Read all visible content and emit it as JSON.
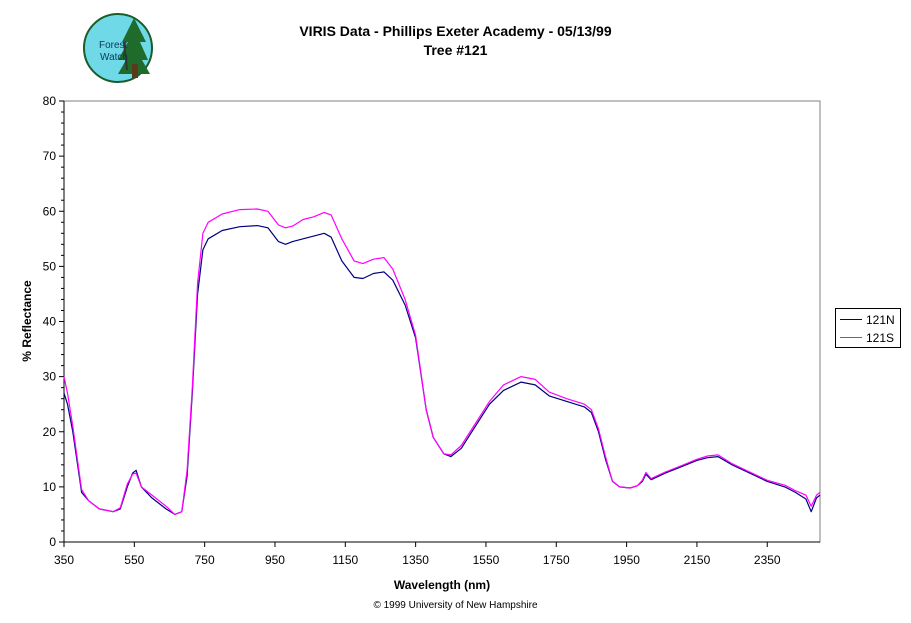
{
  "chart_data": {
    "type": "line",
    "title": "VIRIS Data - Phillips Exeter Academy - 05/13/99",
    "subtitle": "Tree #121",
    "xlabel": "Wavelength (nm)",
    "ylabel": "% Reflectance",
    "xlim": [
      350,
      2500
    ],
    "ylim": [
      0,
      80
    ],
    "xticks": [
      350,
      550,
      750,
      950,
      1150,
      1350,
      1550,
      1750,
      1950,
      2150,
      2350
    ],
    "yticks": [
      0,
      10,
      20,
      30,
      40,
      50,
      60,
      70,
      80
    ],
    "grid": false,
    "legend_position": "right",
    "series": [
      {
        "name": "121N",
        "color": "#000080",
        "points": [
          [
            350,
            27
          ],
          [
            360,
            25
          ],
          [
            375,
            20
          ],
          [
            400,
            9
          ],
          [
            420,
            7.5
          ],
          [
            450,
            6
          ],
          [
            490,
            5.5
          ],
          [
            510,
            6
          ],
          [
            530,
            10
          ],
          [
            545,
            12.5
          ],
          [
            555,
            13
          ],
          [
            570,
            10
          ],
          [
            600,
            8
          ],
          [
            640,
            6
          ],
          [
            665,
            5
          ],
          [
            685,
            5.5
          ],
          [
            700,
            12
          ],
          [
            715,
            27
          ],
          [
            730,
            45
          ],
          [
            745,
            53
          ],
          [
            760,
            55
          ],
          [
            800,
            56.5
          ],
          [
            850,
            57.2
          ],
          [
            900,
            57.4
          ],
          [
            930,
            57
          ],
          [
            960,
            54.5
          ],
          [
            980,
            54
          ],
          [
            1000,
            54.5
          ],
          [
            1030,
            55
          ],
          [
            1060,
            55.5
          ],
          [
            1090,
            56
          ],
          [
            1110,
            55.3
          ],
          [
            1140,
            51
          ],
          [
            1175,
            48
          ],
          [
            1200,
            47.8
          ],
          [
            1230,
            48.7
          ],
          [
            1260,
            49
          ],
          [
            1285,
            47.5
          ],
          [
            1320,
            43
          ],
          [
            1350,
            37
          ],
          [
            1380,
            24
          ],
          [
            1400,
            19
          ],
          [
            1430,
            16
          ],
          [
            1450,
            15.5
          ],
          [
            1480,
            17
          ],
          [
            1520,
            21
          ],
          [
            1560,
            25
          ],
          [
            1600,
            27.5
          ],
          [
            1650,
            29
          ],
          [
            1690,
            28.5
          ],
          [
            1730,
            26.5
          ],
          [
            1780,
            25.5
          ],
          [
            1830,
            24.5
          ],
          [
            1850,
            23.5
          ],
          [
            1870,
            20
          ],
          [
            1890,
            15
          ],
          [
            1910,
            11
          ],
          [
            1930,
            10
          ],
          [
            1960,
            9.8
          ],
          [
            1980,
            10.2
          ],
          [
            1995,
            11
          ],
          [
            2005,
            12.3
          ],
          [
            2020,
            11.3
          ],
          [
            2060,
            12.5
          ],
          [
            2100,
            13.5
          ],
          [
            2150,
            14.8
          ],
          [
            2180,
            15.3
          ],
          [
            2210,
            15.5
          ],
          [
            2250,
            14
          ],
          [
            2300,
            12.5
          ],
          [
            2350,
            11
          ],
          [
            2400,
            10
          ],
          [
            2430,
            9
          ],
          [
            2460,
            7.8
          ],
          [
            2475,
            5.5
          ],
          [
            2490,
            8
          ],
          [
            2500,
            8.5
          ]
        ]
      },
      {
        "name": "121S",
        "color": "#ff00ff",
        "points": [
          [
            350,
            30
          ],
          [
            360,
            27
          ],
          [
            375,
            21
          ],
          [
            400,
            9.5
          ],
          [
            420,
            7.5
          ],
          [
            450,
            6
          ],
          [
            490,
            5.5
          ],
          [
            510,
            6.2
          ],
          [
            530,
            10.5
          ],
          [
            545,
            12.3
          ],
          [
            555,
            12.5
          ],
          [
            570,
            10
          ],
          [
            600,
            8.5
          ],
          [
            640,
            6.5
          ],
          [
            665,
            5
          ],
          [
            685,
            5.5
          ],
          [
            700,
            13
          ],
          [
            715,
            28
          ],
          [
            730,
            47
          ],
          [
            745,
            56
          ],
          [
            760,
            58
          ],
          [
            800,
            59.5
          ],
          [
            850,
            60.3
          ],
          [
            900,
            60.4
          ],
          [
            930,
            60
          ],
          [
            960,
            57.5
          ],
          [
            980,
            57
          ],
          [
            1000,
            57.3
          ],
          [
            1030,
            58.5
          ],
          [
            1060,
            59
          ],
          [
            1090,
            59.8
          ],
          [
            1110,
            59.3
          ],
          [
            1140,
            55
          ],
          [
            1175,
            51
          ],
          [
            1200,
            50.5
          ],
          [
            1230,
            51.3
          ],
          [
            1260,
            51.6
          ],
          [
            1285,
            49.5
          ],
          [
            1320,
            44
          ],
          [
            1350,
            37.5
          ],
          [
            1380,
            24
          ],
          [
            1400,
            19
          ],
          [
            1430,
            16
          ],
          [
            1450,
            15.8
          ],
          [
            1480,
            17.5
          ],
          [
            1520,
            21.5
          ],
          [
            1560,
            25.5
          ],
          [
            1600,
            28.5
          ],
          [
            1650,
            30
          ],
          [
            1690,
            29.5
          ],
          [
            1730,
            27.2
          ],
          [
            1780,
            26
          ],
          [
            1830,
            25
          ],
          [
            1850,
            24
          ],
          [
            1870,
            20.5
          ],
          [
            1890,
            15.5
          ],
          [
            1910,
            11
          ],
          [
            1930,
            10
          ],
          [
            1960,
            9.8
          ],
          [
            1980,
            10.2
          ],
          [
            1995,
            11.2
          ],
          [
            2005,
            12.6
          ],
          [
            2020,
            11.5
          ],
          [
            2060,
            12.7
          ],
          [
            2100,
            13.7
          ],
          [
            2150,
            15
          ],
          [
            2180,
            15.6
          ],
          [
            2210,
            15.8
          ],
          [
            2250,
            14.2
          ],
          [
            2300,
            12.7
          ],
          [
            2350,
            11.2
          ],
          [
            2400,
            10.3
          ],
          [
            2430,
            9.3
          ],
          [
            2460,
            8.5
          ],
          [
            2475,
            6.5
          ],
          [
            2490,
            8.5
          ],
          [
            2500,
            9
          ]
        ]
      }
    ]
  },
  "logo": {
    "text_line1": "Forest",
    "text_line2": "Watch"
  },
  "footer": {
    "copyright": "© 1999 University of New Hampshire"
  }
}
